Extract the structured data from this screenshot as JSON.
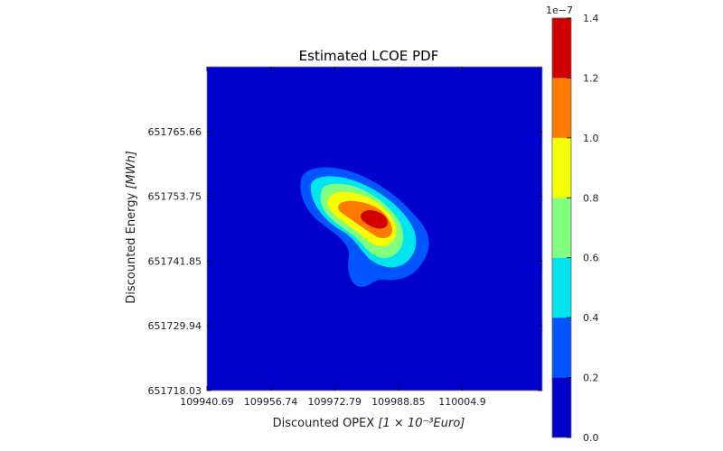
{
  "chart_data": {
    "type": "contour",
    "title": "Estimated LCOE PDF",
    "xlabel": "Discounted OPEX",
    "xlabel_math": "[1 × 10⁻³Euro]",
    "ylabel": "Discounted Energy",
    "ylabel_math": "[MWh]",
    "x_ticks": [
      "109940.69",
      "109956.74",
      "109972.79",
      "109988.85",
      "110004.9"
    ],
    "y_ticks": [
      "651718.03",
      "651729.94",
      "651741.85",
      "651753.75",
      "651765.66"
    ],
    "xlim": [
      109940.69,
      110025.0
    ],
    "ylim": [
      651718.03,
      651777.6
    ],
    "colorbar": {
      "offset_label": "1e−7",
      "ticks": [
        "0.0",
        "0.2",
        "0.4",
        "0.6",
        "0.8",
        "1.0",
        "1.2",
        "1.4"
      ],
      "levels": [
        0.0,
        0.2,
        0.4,
        0.6,
        0.8,
        1.0,
        1.2,
        1.4
      ],
      "colors": [
        "#0000cc",
        "#0055ff",
        "#00e5ee",
        "#80ff80",
        "#f5ff00",
        "#ff7a00",
        "#d00000"
      ]
    },
    "peak": {
      "x": 109984.0,
      "y": 651749.5,
      "value": 1.35
    },
    "grid": false,
    "colormap": "jet"
  }
}
